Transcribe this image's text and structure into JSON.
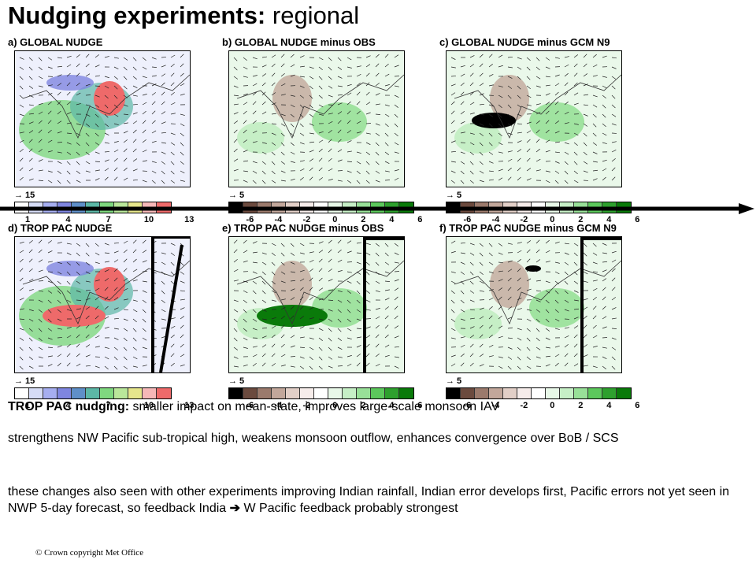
{
  "title": {
    "bold": "Nudging experiments:",
    "rest": " regional"
  },
  "panels": [
    {
      "id": "a",
      "title": "a) GLOBAL NUDGE",
      "vector": "15",
      "cbar": "seq",
      "ticks": [
        "1",
        "4",
        "7",
        "10",
        "13"
      ],
      "style": "abs"
    },
    {
      "id": "b",
      "title": "b) GLOBAL NUDGE minus OBS",
      "vector": "5",
      "cbar": "div",
      "ticks": [
        "-6",
        "-4",
        "-2",
        "0",
        "2",
        "4",
        "6"
      ],
      "style": "diff"
    },
    {
      "id": "c",
      "title": "c) GLOBAL NUDGE minus GCM N9",
      "vector": "5",
      "cbar": "div",
      "ticks": [
        "-6",
        "-4",
        "-2",
        "0",
        "2",
        "4",
        "6"
      ],
      "style": "diff"
    },
    {
      "id": "d",
      "title": "d) TROP PAC NUDGE",
      "vector": "15",
      "cbar": "seq",
      "ticks": [
        "1",
        "4",
        "7",
        "10",
        "13"
      ],
      "style": "abs"
    },
    {
      "id": "e",
      "title": "e) TROP PAC NUDGE minus OBS",
      "vector": "5",
      "cbar": "div",
      "ticks": [
        "-6",
        "-4",
        "-2",
        "0",
        "2",
        "4",
        "6"
      ],
      "style": "diff"
    },
    {
      "id": "f",
      "title": "f) TROP PAC NUDGE minus GCM N9",
      "vector": "5",
      "cbar": "div",
      "ticks": [
        "-6",
        "-4",
        "-2",
        "0",
        "2",
        "4",
        "6"
      ],
      "style": "diff"
    }
  ],
  "colors": {
    "seq": [
      "#ffffff",
      "#d6dcf6",
      "#a6aef0",
      "#7f86e0",
      "#5f8fc8",
      "#5cb7a6",
      "#7fd87f",
      "#b9e79a",
      "#e6e68c",
      "#f6b8b8",
      "#ee6a6a"
    ],
    "div": [
      "#000000",
      "#6b4a3e",
      "#9b7a6c",
      "#c2a79b",
      "#e2cfc7",
      "#f6ecea",
      "#ffffff",
      "#e8f8e8",
      "#c6efc6",
      "#98e098",
      "#5cc85c",
      "#2ea02e",
      "#0a7a0a"
    ]
  },
  "text": {
    "p1_bold": "TROP PAC nudging:",
    "p1_rest": " smaller impact on mean-state, improves large-scale monsoon IAV",
    "p2": "strengthens NW Pacific sub-tropical high, weakens monsoon outflow, enhances convergence over BoB / SCS",
    "p3a": "these changes also seen with other experiments improving Indian rainfall, Indian error develops first, Pacific errors not yet seen in NWP 5-day forecast, so feedback India ",
    "p3_arrow": "➔",
    "p3b": " W Pacific feedback probably strongest"
  },
  "footer": "© Crown copyright   Met Office"
}
